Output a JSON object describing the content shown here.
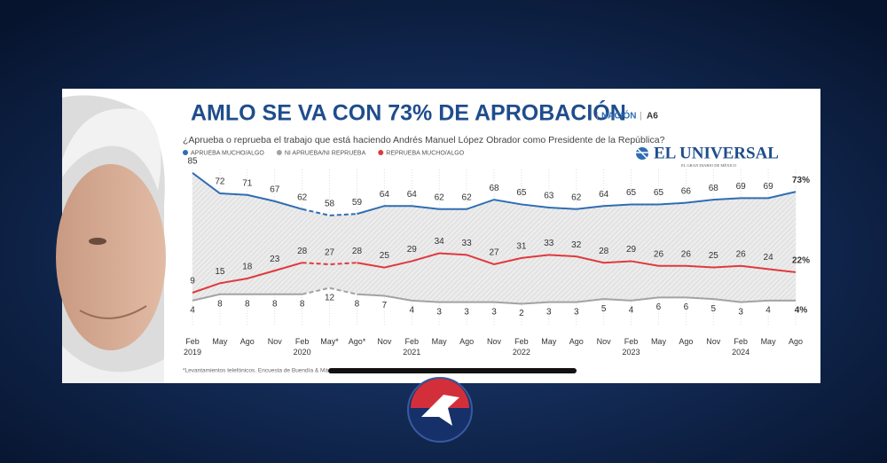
{
  "chart_data": {
    "type": "line",
    "title": "AMLO SE VA CON 73% DE APROBACIÓN",
    "section": "NACIÓN",
    "page": "A6",
    "subtitle": "¿Aprueba o reprueba el trabajo que está haciendo Andrés Manuel López Obrador como Presidente de la República?",
    "brand": "EL UNIVERSAL",
    "brand_tagline": "EL GRAN DIARIO DE MÉXICO",
    "footnote": "*Levantamientos telefónicos. Encuesta de Buendía & Má",
    "categories": [
      "Feb\n2019",
      "May",
      "Ago",
      "Nov",
      "Feb\n2020",
      "May*",
      "Ago*",
      "Nov",
      "Feb\n2021",
      "May",
      "Ago",
      "Nov",
      "Feb\n2022",
      "May",
      "Ago",
      "Nov",
      "Feb\n2023",
      "May",
      "Ago",
      "Nov",
      "Feb\n2024",
      "May",
      "Ago"
    ],
    "ylim": [
      0,
      90
    ],
    "series": [
      {
        "name": "APRUEBA MUCHO/ALGO",
        "color": "#2f6db3",
        "values": [
          85,
          72,
          71,
          67,
          62,
          58,
          59,
          64,
          64,
          62,
          62,
          68,
          65,
          63,
          62,
          64,
          65,
          65,
          66,
          68,
          69,
          69,
          73
        ],
        "value_labels": [
          "85",
          "72",
          "71",
          "67",
          "62",
          "58",
          "59",
          "64",
          "64",
          "62",
          "62",
          "68",
          "65",
          "63",
          "62",
          "64",
          "65",
          "65",
          "66",
          "68",
          "69",
          "69",
          "73%"
        ]
      },
      {
        "name": "NI APRUEBA/NI REPRUEBA",
        "color": "#a3a3a3",
        "values": [
          4,
          8,
          8,
          8,
          8,
          12,
          8,
          7,
          4,
          3,
          3,
          3,
          2,
          3,
          3,
          5,
          4,
          6,
          6,
          5,
          3,
          4,
          4
        ],
        "value_labels": [
          "4",
          "8",
          "8",
          "8",
          "8",
          "12",
          "8",
          "7",
          "4",
          "3",
          "3",
          "3",
          "2",
          "3",
          "3",
          "5",
          "4",
          "6",
          "6",
          "5",
          "3",
          "4",
          "4%"
        ]
      },
      {
        "name": "REPRUEBA MUCHO/ALGO",
        "color": "#e0393e",
        "values": [
          9,
          15,
          18,
          23,
          28,
          27,
          28,
          25,
          29,
          34,
          33,
          27,
          31,
          33,
          32,
          28,
          29,
          26,
          26,
          25,
          26,
          24,
          22
        ],
        "value_labels": [
          "9",
          "15",
          "18",
          "23",
          "28",
          "27",
          "28",
          "25",
          "29",
          "34",
          "33",
          "27",
          "31",
          "33",
          "32",
          "28",
          "29",
          "26",
          "26",
          "25",
          "26",
          "24",
          "22%"
        ]
      }
    ]
  }
}
